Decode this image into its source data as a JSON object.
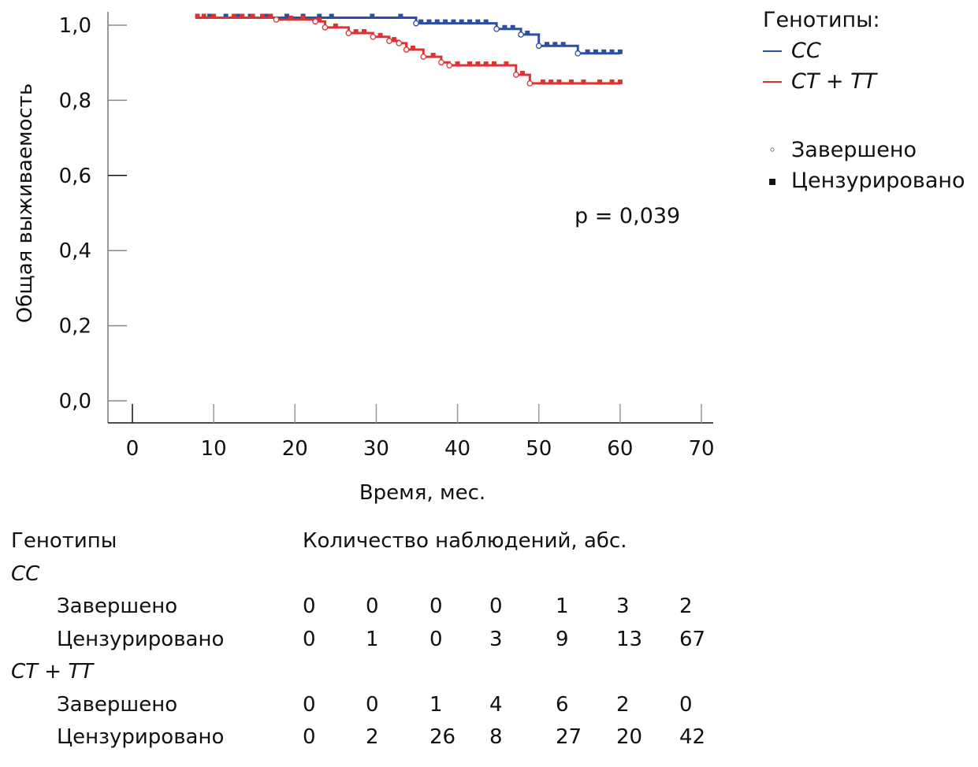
{
  "chart_data": {
    "type": "line",
    "subtype": "kaplan-meier",
    "title": "",
    "xlabel": "Время, мес.",
    "ylabel": "Общая выживаемость",
    "xlim": [
      0,
      70
    ],
    "ylim": [
      0,
      1.0
    ],
    "x_ticks": [
      0,
      10,
      20,
      30,
      40,
      50,
      60,
      70
    ],
    "x_tick_labels": [
      "0",
      "10",
      "20",
      "30",
      "40",
      "50",
      "60",
      "70"
    ],
    "y_ticks": [
      0.0,
      0.2,
      0.4,
      0.6,
      0.8,
      1.0
    ],
    "y_tick_labels": [
      "0,0",
      "0,2",
      "0,4",
      "0,6",
      "0,8",
      "1,0"
    ],
    "grid": false,
    "legend_position": "right",
    "annotation": "p = 0,039",
    "series": [
      {
        "name": "CC",
        "color": "#2b4fa3",
        "steps": [
          {
            "x": 7.8,
            "y": 1.02
          },
          {
            "x": 34.9,
            "y": 1.005
          },
          {
            "x": 44.8,
            "y": 0.99
          },
          {
            "x": 47.8,
            "y": 0.975
          },
          {
            "x": 50.0,
            "y": 0.945
          },
          {
            "x": 54.8,
            "y": 0.925
          },
          {
            "x": 60.0,
            "y": 0.925
          }
        ],
        "events": [
          34.9,
          44.8,
          47.8,
          50.0,
          54.8
        ],
        "censored": [
          8.0,
          9.5,
          11.5,
          13.0,
          14.5,
          16.5,
          19.0,
          21.0,
          23.0,
          24.5,
          29.5,
          33.0,
          35.5,
          36.5,
          37.5,
          38.5,
          39.5,
          40.5,
          41.5,
          42.5,
          43.5,
          45.8,
          46.8,
          48.6,
          51.0,
          52.0,
          53.0,
          56.0,
          57.0,
          58.0,
          59.0,
          60.0
        ]
      },
      {
        "name": "CT + TT",
        "color": "#e03232",
        "steps": [
          {
            "x": 7.8,
            "y": 1.02
          },
          {
            "x": 17.7,
            "y": 1.015
          },
          {
            "x": 22.5,
            "y": 1.01
          },
          {
            "x": 23.7,
            "y": 0.994
          },
          {
            "x": 26.6,
            "y": 0.979
          },
          {
            "x": 29.6,
            "y": 0.969
          },
          {
            "x": 31.6,
            "y": 0.958
          },
          {
            "x": 32.8,
            "y": 0.952
          },
          {
            "x": 33.7,
            "y": 0.935
          },
          {
            "x": 35.8,
            "y": 0.916
          },
          {
            "x": 38.0,
            "y": 0.901
          },
          {
            "x": 39.0,
            "y": 0.893
          },
          {
            "x": 47.2,
            "y": 0.868
          },
          {
            "x": 48.9,
            "y": 0.845
          },
          {
            "x": 60.0,
            "y": 0.845
          }
        ],
        "events": [
          17.7,
          22.5,
          23.7,
          26.6,
          29.6,
          31.6,
          32.8,
          33.7,
          35.8,
          38.0,
          39.0,
          47.2,
          48.9
        ],
        "censored": [
          8.0,
          8.8,
          10.0,
          12.5,
          13.5,
          14.8,
          16.0,
          17.0,
          19.5,
          21.0,
          23.0,
          25.0,
          27.5,
          28.5,
          30.5,
          32.2,
          34.5,
          37.0,
          40.0,
          41.5,
          42.5,
          43.5,
          44.5,
          46.0,
          48.0,
          50.5,
          51.5,
          52.5,
          54.0,
          55.5,
          57.5,
          59.0,
          60.0
        ]
      }
    ]
  },
  "legend": {
    "title": "Генотипы:",
    "series": [
      {
        "label": "CC",
        "color": "#2b4fa3"
      },
      {
        "label": "CT + TT",
        "color": "#e03232"
      }
    ],
    "markers": [
      {
        "symbol": "◦",
        "label": "Завершено"
      },
      {
        "symbol": "▪",
        "label": "Цензурировано"
      }
    ]
  },
  "pvalue": "p = 0,039",
  "risk_table": {
    "header_left": "Генотипы",
    "header_right": "Количество наблюдений, абс.",
    "groups": [
      {
        "name": "CC",
        "rows": [
          {
            "label": "Завершено",
            "values": [
              "0",
              "0",
              "0",
              "0",
              "1",
              "3",
              "2"
            ]
          },
          {
            "label": "Цензурировано",
            "values": [
              "0",
              "1",
              "0",
              "3",
              "9",
              "13",
              "67"
            ]
          }
        ]
      },
      {
        "name": "CT + TT",
        "rows": [
          {
            "label": "Завершено",
            "values": [
              "0",
              "0",
              "1",
              "4",
              "6",
              "2",
              "0"
            ]
          },
          {
            "label": "Цензурировано",
            "values": [
              "0",
              "2",
              "26",
              "8",
              "27",
              "20",
              "42"
            ]
          }
        ]
      }
    ]
  }
}
